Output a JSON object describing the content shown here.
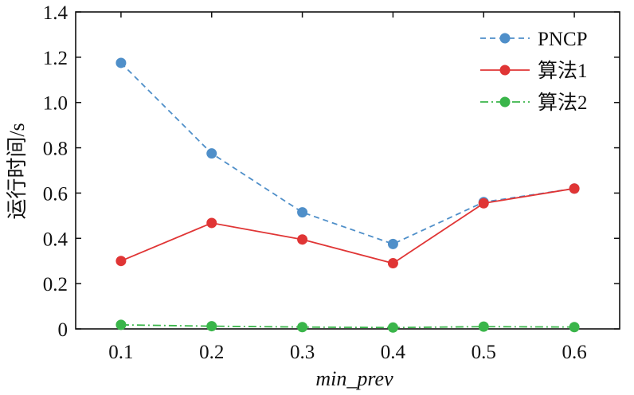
{
  "chart_data": {
    "type": "line",
    "xlabel": "min_prev",
    "ylabel": "运行时间/s",
    "x": [
      0.1,
      0.2,
      0.3,
      0.4,
      0.5,
      0.6
    ],
    "x_tick_labels": [
      "0.1",
      "0.2",
      "0.3",
      "0.4",
      "0.5",
      "0.6"
    ],
    "xlim": [
      0.05,
      0.65
    ],
    "ylim": [
      0,
      1.4
    ],
    "y_ticks": [
      0,
      0.2,
      0.4,
      0.6,
      0.8,
      1.0,
      1.2,
      1.4
    ],
    "y_tick_labels": [
      "0",
      "0.2",
      "0.4",
      "0.6",
      "0.8",
      "1.0",
      "1.2",
      "1.4"
    ],
    "grid": false,
    "legend_position": "top-right",
    "series": [
      {
        "name": "PNCP",
        "values": [
          1.175,
          0.775,
          0.515,
          0.375,
          0.56,
          0.62
        ],
        "color": "#4f8fc9",
        "line_style": "dashed"
      },
      {
        "name": "算法1",
        "values": [
          0.3,
          0.468,
          0.395,
          0.29,
          0.555,
          0.62
        ],
        "color": "#e03535",
        "line_style": "solid"
      },
      {
        "name": "算法2",
        "values": [
          0.018,
          0.012,
          0.008,
          0.006,
          0.01,
          0.008
        ],
        "color": "#3ab54a",
        "line_style": "dashdot"
      }
    ]
  }
}
